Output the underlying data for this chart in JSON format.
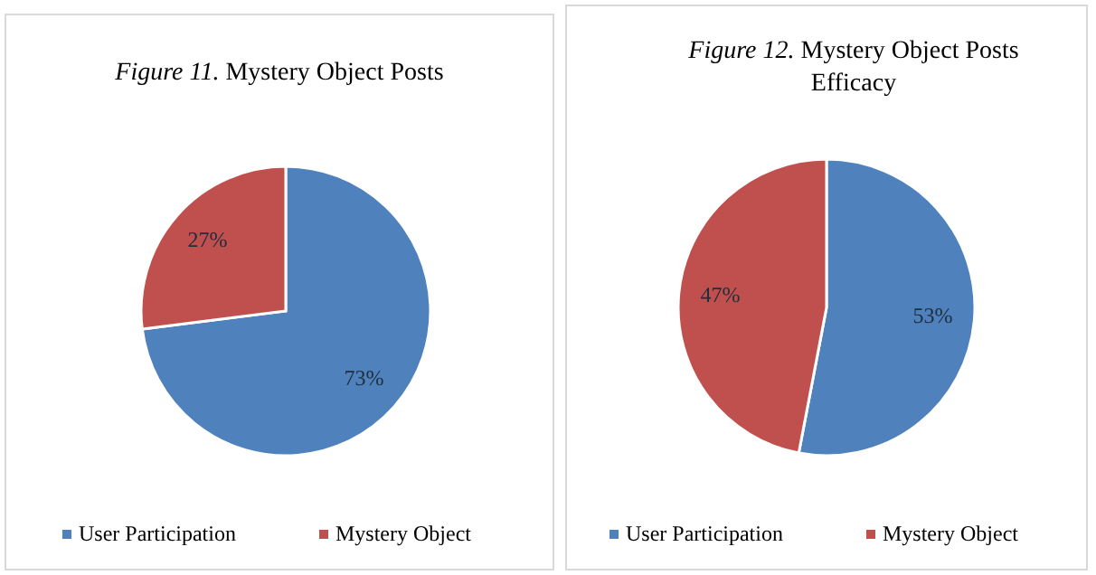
{
  "chart_data": [
    {
      "type": "pie",
      "title": "Figure 11. Mystery Object Posts",
      "categories": [
        "User Participation",
        "Mystery Object"
      ],
      "values": [
        73,
        27
      ],
      "colors": [
        "#4f81bd",
        "#c0504d"
      ],
      "value_labels": [
        "73%",
        "27%"
      ],
      "legend": "bottom"
    },
    {
      "type": "pie",
      "title": "Figure 12. Mystery Object Posts Efficacy",
      "categories": [
        "User Participation",
        "Mystery Object"
      ],
      "values": [
        53,
        47
      ],
      "colors": [
        "#4f81bd",
        "#c0504d"
      ],
      "value_labels": [
        "53%",
        "47%"
      ],
      "legend": "bottom"
    }
  ]
}
